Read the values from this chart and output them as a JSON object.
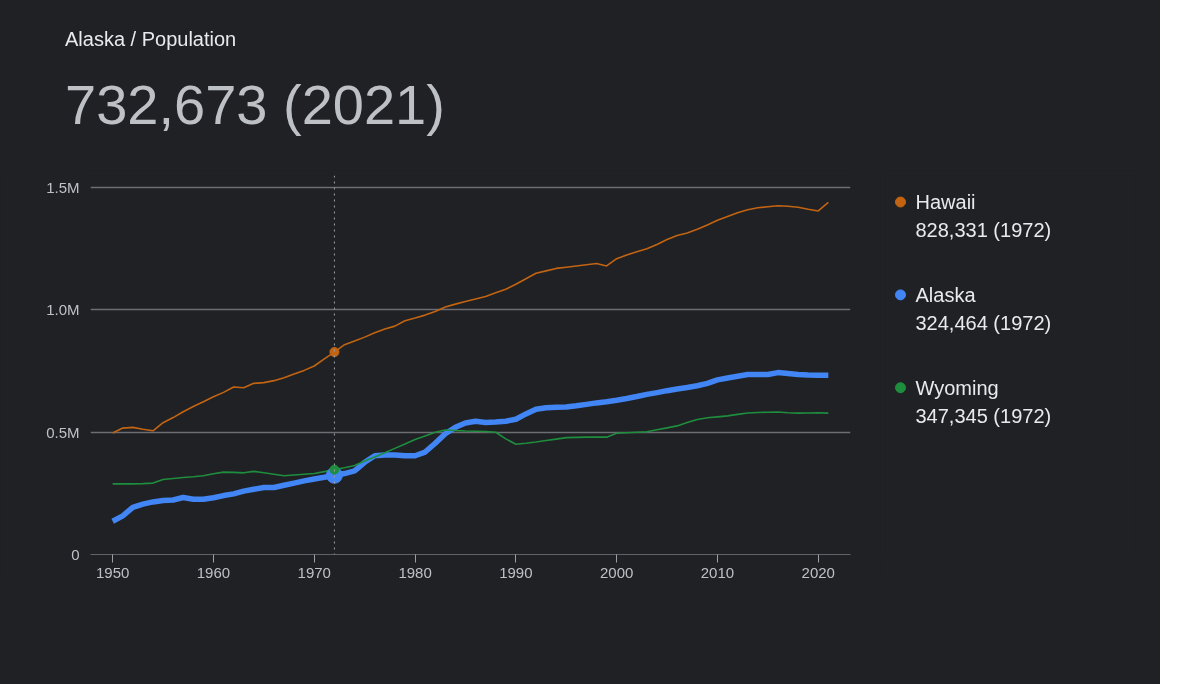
{
  "chart_data": {
    "type": "line",
    "title": "Alaska / Population",
    "subtitle": "732,673 (2021)",
    "x": [
      1950,
      1951,
      1952,
      1953,
      1954,
      1955,
      1956,
      1957,
      1958,
      1959,
      1960,
      1961,
      1962,
      1963,
      1964,
      1965,
      1966,
      1967,
      1968,
      1969,
      1970,
      1971,
      1972,
      1973,
      1974,
      1975,
      1976,
      1977,
      1978,
      1979,
      1980,
      1981,
      1982,
      1983,
      1984,
      1985,
      1986,
      1987,
      1988,
      1989,
      1990,
      1991,
      1992,
      1993,
      1994,
      1995,
      1996,
      1997,
      1998,
      1999,
      2000,
      2001,
      2002,
      2003,
      2004,
      2005,
      2006,
      2007,
      2008,
      2009,
      2010,
      2011,
      2012,
      2013,
      2014,
      2015,
      2016,
      2017,
      2018,
      2019,
      2020,
      2021
    ],
    "series": [
      {
        "name": "Hawaii",
        "color": "#c26412",
        "values": [
          497000,
          517000,
          520000,
          512000,
          506000,
          539000,
          560000,
          584000,
          605000,
          625000,
          645000,
          663000,
          685000,
          682000,
          700000,
          703000,
          711000,
          723000,
          738000,
          753000,
          771000,
          800000,
          828000,
          858000,
          873000,
          889000,
          907000,
          922000,
          934000,
          956000,
          967000,
          979000,
          994000,
          1012000,
          1024000,
          1035000,
          1045000,
          1055000,
          1070000,
          1085000,
          1105000,
          1128000,
          1150000,
          1160000,
          1170000,
          1175000,
          1180000,
          1185000,
          1190000,
          1180000,
          1210000,
          1225000,
          1238000,
          1250000,
          1268000,
          1288000,
          1305000,
          1315000,
          1330000,
          1348000,
          1367000,
          1382000,
          1398000,
          1410000,
          1418000,
          1422000,
          1426000,
          1424000,
          1420000,
          1412000,
          1405000,
          1440000
        ]
      },
      {
        "name": "Alaska",
        "color": "#4285f4",
        "values": [
          136000,
          158000,
          193000,
          206000,
          215000,
          221000,
          223000,
          233000,
          226000,
          226000,
          232000,
          241000,
          248000,
          259000,
          267000,
          274000,
          274000,
          283000,
          292000,
          301000,
          309000,
          316000,
          324000,
          331000,
          342000,
          377000,
          404000,
          407000,
          407000,
          404000,
          404000,
          419000,
          455000,
          494000,
          520000,
          538000,
          545000,
          540000,
          542000,
          545000,
          553000,
          575000,
          594000,
          600000,
          602000,
          603000,
          608000,
          614000,
          620000,
          625000,
          631000,
          638000,
          646000,
          655000,
          662000,
          670000,
          677000,
          683000,
          690000,
          700000,
          714000,
          722000,
          729000,
          736000,
          736000,
          736000,
          744000,
          740000,
          736000,
          734000,
          733000,
          733000
        ]
      },
      {
        "name": "Wyoming",
        "color": "#1e8e3e",
        "values": [
          289000,
          289000,
          289000,
          290000,
          292000,
          307000,
          311000,
          315000,
          318000,
          322000,
          330000,
          337000,
          336000,
          334000,
          340000,
          334000,
          328000,
          322000,
          325000,
          328000,
          331000,
          339000,
          347000,
          355000,
          364000,
          382000,
          399000,
          416000,
          434000,
          452000,
          470000,
          485000,
          500000,
          509000,
          507000,
          505000,
          504000,
          503000,
          500000,
          473000,
          451000,
          455000,
          460000,
          466000,
          472000,
          478000,
          479000,
          480000,
          480000,
          480000,
          496000,
          498000,
          500000,
          502000,
          510000,
          518000,
          526000,
          540000,
          552000,
          559000,
          563000,
          567000,
          573000,
          579000,
          581000,
          582000,
          583000,
          580000,
          578000,
          579000,
          580000,
          578000
        ]
      }
    ],
    "annotations": [
      "828,331 (1972)",
      "324,464 (1972)",
      "347,345 (1972)"
    ],
    "ref_lines": [
      {
        "axis": "x",
        "value": 1972,
        "line_style": "dotted",
        "color": "#9aa0a6"
      }
    ],
    "xlim": [
      1947.8,
      2023.2
    ],
    "ylim": [
      0,
      1550000
    ],
    "xticks": [
      1950,
      1960,
      1970,
      1980,
      1990,
      2000,
      2010,
      2020
    ],
    "yticks": [
      {
        "value": 0,
        "label": "0"
      },
      {
        "value": 500000,
        "label": "0.5M"
      },
      {
        "value": 1000000,
        "label": "1.0M"
      },
      {
        "value": 1500000,
        "label": "1.5M"
      }
    ],
    "grid": "y",
    "legend": "right",
    "marker": "none",
    "line_style": "solid"
  }
}
